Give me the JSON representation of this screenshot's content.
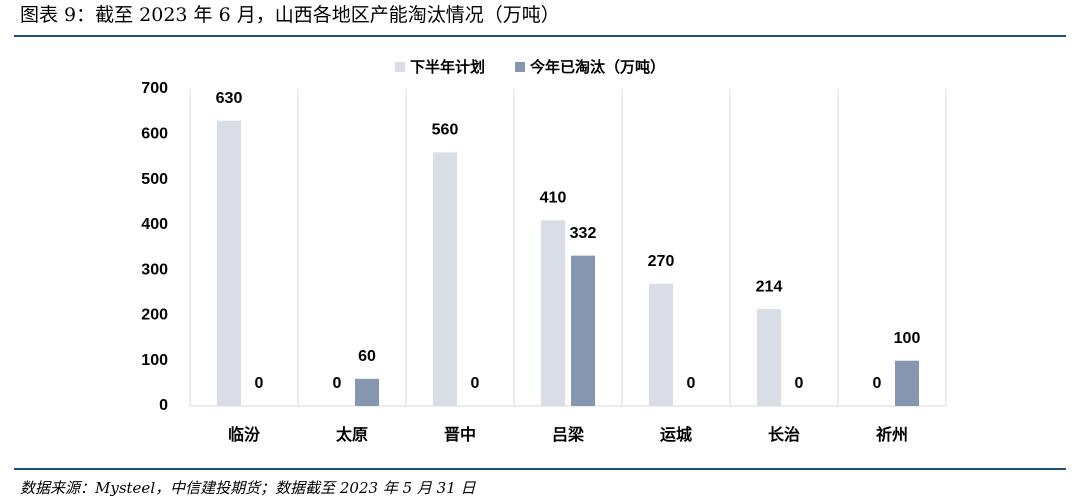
{
  "chart_data": {
    "type": "bar",
    "title": "图表 9：截至 2023 年 6 月，山西各地区产能淘汰情况（万吨）",
    "source": "数据来源：Mysteel，中信建投期货；数据截至 2023 年 5 月 31 日",
    "categories": [
      "临汾",
      "太原",
      "晋中",
      "吕梁",
      "运城",
      "长治",
      "祈州"
    ],
    "series": [
      {
        "name": "下半年计划",
        "color": "#d9dde6",
        "values": [
          630,
          0,
          560,
          410,
          270,
          214,
          0
        ]
      },
      {
        "name": "今年已淘汰（万吨）",
        "color": "#8496b0",
        "values": [
          0,
          60,
          0,
          332,
          0,
          0,
          100
        ]
      }
    ],
    "ylim": [
      0,
      700
    ],
    "yticks": [
      0,
      100,
      200,
      300,
      400,
      500,
      600,
      700
    ],
    "grid": true,
    "legend": "top"
  }
}
